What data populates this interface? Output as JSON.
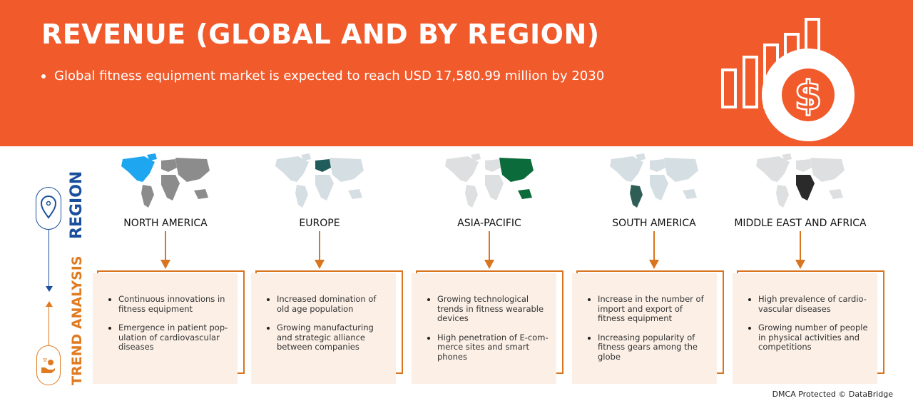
{
  "header": {
    "title": "REVENUE (GLOBAL AND BY REGION)",
    "subtitle": "Global fitness equipment market is expected to reach USD 17,580.99 million by 2030",
    "icon": "revenue-growth-dollar-icon"
  },
  "side": {
    "region_label": "REGION",
    "trend_label": "TREND ANALYSIS",
    "region_icon": "location-pin-icon",
    "trend_icon": "hand-coin-icon"
  },
  "colors": {
    "header": "#F15A2B",
    "region_blue": "#1B4F9C",
    "trend_orange": "#E07A1F",
    "box_bg": "#FBEFE6"
  },
  "regions": [
    {
      "name": "NORTH AMERICA",
      "highlight": "#1EA7F0",
      "base": "#8C8C8C",
      "points": [
        "Continuous innovations in fitness equipment",
        "Emergence in patient pop-ulation of cardiovascular diseases"
      ]
    },
    {
      "name": "EUROPE",
      "highlight": "#1F5C5A",
      "base": "#D5DEE2",
      "points": [
        "Increased domination of old age population",
        "Growing manufacturing and strategic alliance between companies"
      ]
    },
    {
      "name": "ASIA-PACIFIC",
      "highlight": "#0B6B3A",
      "base": "#DDDFE0",
      "points": [
        "Growing technological trends in fitness wearable devices",
        "High penetration of E-com-merce sites and smart phones"
      ]
    },
    {
      "name": "SOUTH AMERICA",
      "highlight": "#2F5E57",
      "base": "#D5DEE2",
      "points": [
        "Increase in the number of import and export of fitness equipment",
        "Increasing popularity of fitness gears among the globe"
      ]
    },
    {
      "name": "MIDDLE EAST AND AFRICA",
      "highlight": "#2A2A2A",
      "base": "#DDDFE0",
      "points": [
        "High prevalence of cardio-vascular diseases",
        "Growing number of people in physical activities and competitions"
      ]
    }
  ],
  "footer": "DMCA Protected © DataBridge"
}
